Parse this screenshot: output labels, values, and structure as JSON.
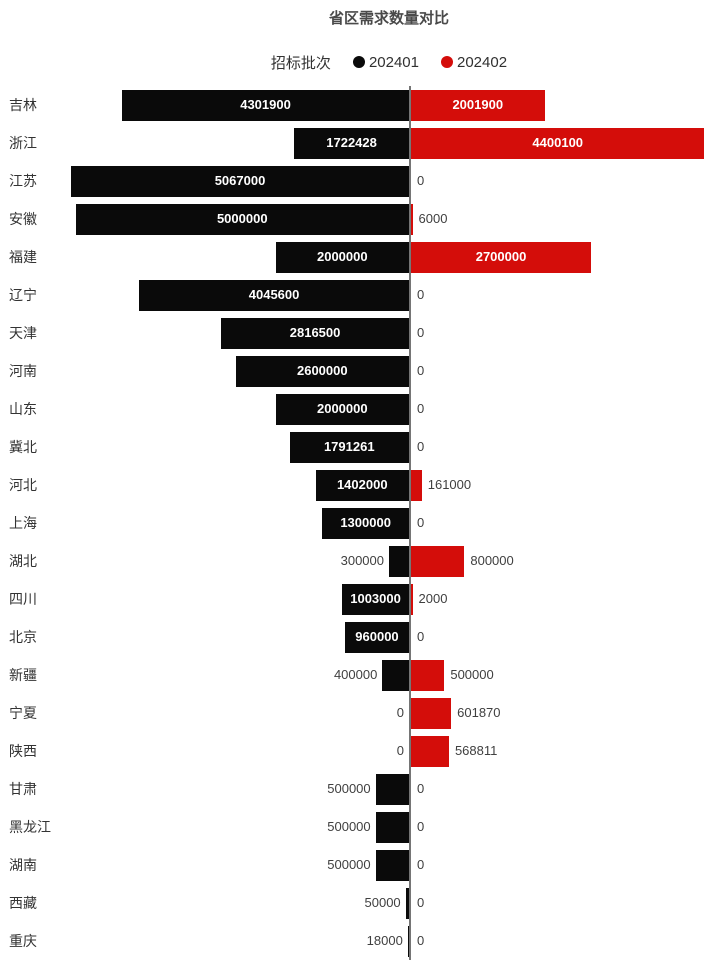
{
  "title": "省区需求数量对比",
  "legend": {
    "title": "招标批次",
    "items": [
      {
        "label": "202401",
        "color": "#0a0a0a"
      },
      {
        "label": "202402",
        "color": "#d40d0a"
      }
    ]
  },
  "chart_data": {
    "type": "bar",
    "variant": "diverging-horizontal-tornado",
    "title": "省区需求数量对比",
    "legend_title": "招标批次",
    "legend_position": "top-center",
    "grid": false,
    "value_axis_max": 5067000,
    "data_labels": "raw values shown on or beside every bar, zeros included",
    "categories": [
      "吉林",
      "浙江",
      "江苏",
      "安徽",
      "福建",
      "辽宁",
      "天津",
      "河南",
      "山东",
      "冀北",
      "河北",
      "上海",
      "湖北",
      "四川",
      "北京",
      "新疆",
      "宁夏",
      "陕西",
      "甘肃",
      "黑龙江",
      "湖南",
      "西藏",
      "重庆"
    ],
    "series": [
      {
        "name": "202401",
        "side": "left",
        "color": "#0a0a0a",
        "values": [
          4301900,
          1722428,
          5067000,
          5000000,
          2000000,
          4045600,
          2816500,
          2600000,
          2000000,
          1791261,
          1402000,
          1300000,
          300000,
          1003000,
          960000,
          400000,
          0,
          0,
          500000,
          500000,
          500000,
          50000,
          18000
        ]
      },
      {
        "name": "202402",
        "side": "right",
        "color": "#d40d0a",
        "values": [
          2001900,
          4400100,
          0,
          6000,
          2700000,
          0,
          0,
          0,
          0,
          0,
          161000,
          0,
          800000,
          2000,
          0,
          500000,
          601870,
          568811,
          0,
          0,
          0,
          0,
          0
        ]
      }
    ]
  },
  "styles": {
    "background": "#ffffff",
    "title_color": "#4a4a4a",
    "category_label_color": "#333333",
    "outside_value_color": "#404040",
    "inside_value_color": "#ffffff",
    "axis_line_color": "#757575"
  }
}
